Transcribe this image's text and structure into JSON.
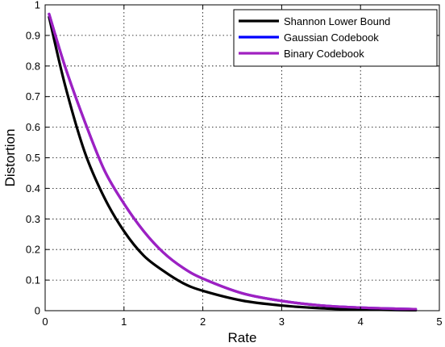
{
  "chart_data": {
    "type": "line",
    "title": "",
    "xlabel": "Rate",
    "ylabel": "Distortion",
    "xlim": [
      0,
      5
    ],
    "ylim": [
      0,
      1
    ],
    "x_ticks": [
      "0",
      "1",
      "2",
      "3",
      "4",
      "5"
    ],
    "y_ticks": [
      "0",
      "0.1",
      "0.2",
      "0.3",
      "0.4",
      "0.5",
      "0.6",
      "0.7",
      "0.8",
      "0.9",
      "1"
    ],
    "grid": true,
    "legend_position": "top-right",
    "series": [
      {
        "name": "Shannon Lower Bound",
        "color": "#000000",
        "x": [
          0.05,
          0.25,
          0.5,
          0.75,
          1.0,
          1.25,
          1.5,
          1.75,
          2.0,
          2.5,
          3.0,
          3.5,
          4.0,
          4.5,
          4.7
        ],
        "y": [
          0.96,
          0.74,
          0.52,
          0.37,
          0.26,
          0.18,
          0.13,
          0.09,
          0.065,
          0.033,
          0.017,
          0.008,
          0.004,
          0.002,
          0.0015
        ]
      },
      {
        "name": "Gaussian Codebook",
        "color": "#0000ff",
        "x": [
          0.05,
          0.25,
          0.5,
          0.75,
          1.0,
          1.25,
          1.5,
          1.75,
          2.0,
          2.5,
          3.0,
          3.5,
          4.0,
          4.5,
          4.7
        ],
        "y": [
          0.97,
          0.8,
          0.62,
          0.46,
          0.35,
          0.26,
          0.19,
          0.14,
          0.105,
          0.057,
          0.032,
          0.017,
          0.01,
          0.006,
          0.005
        ]
      },
      {
        "name": "Binary Codebook",
        "color": "#a020c0",
        "x": [
          0.05,
          0.25,
          0.5,
          0.75,
          1.0,
          1.25,
          1.5,
          1.75,
          2.0,
          2.5,
          3.0,
          3.5,
          4.0,
          4.5,
          4.7
        ],
        "y": [
          0.97,
          0.8,
          0.62,
          0.46,
          0.35,
          0.26,
          0.19,
          0.14,
          0.105,
          0.057,
          0.032,
          0.017,
          0.01,
          0.006,
          0.005
        ]
      }
    ]
  }
}
